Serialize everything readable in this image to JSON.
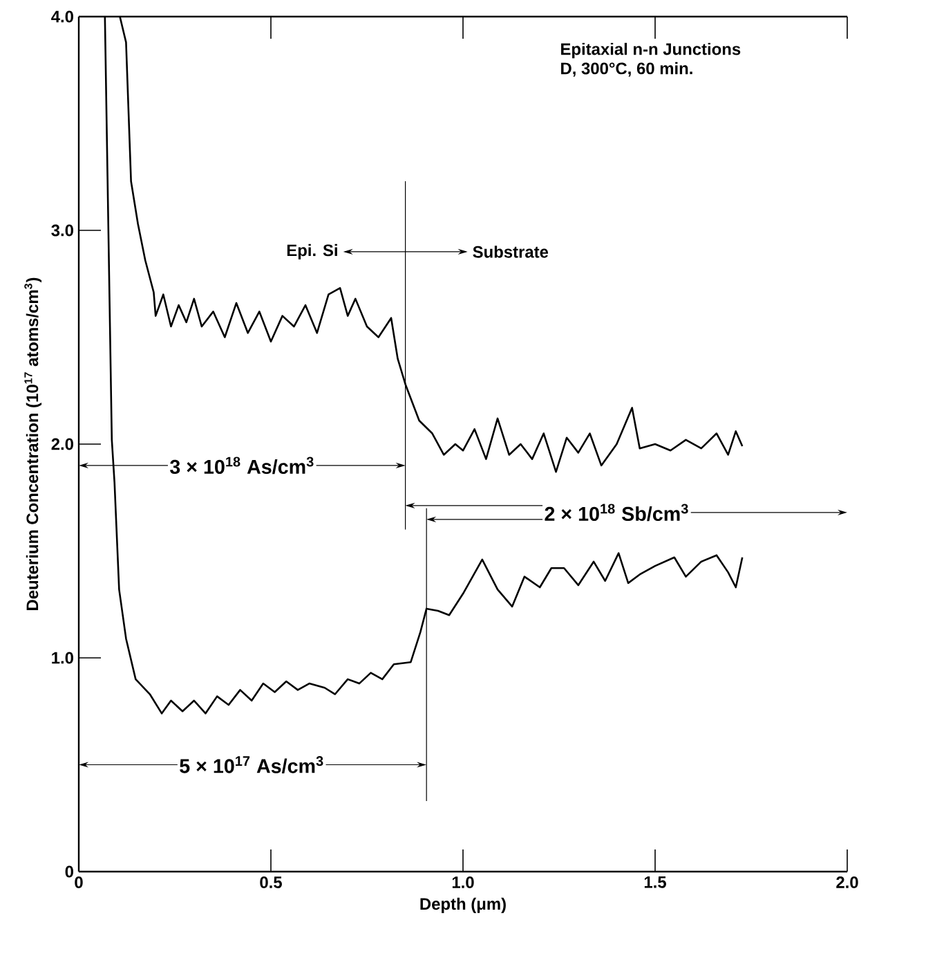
{
  "chart_data": {
    "type": "line",
    "xlabel": "Depth (μm)",
    "ylabel": "Deuterium Concentration (10$^{17}$ atoms/cm$^{3}$)",
    "xlim": [
      0,
      2.0
    ],
    "ylim": [
      0,
      4.0
    ],
    "xticks": [
      0,
      {
        "value": 0.5,
        "label": "0.5"
      },
      {
        "value": 1.0,
        "label": "1.0"
      },
      {
        "value": 1.5,
        "label": "1.5"
      },
      {
        "value": 2.0,
        "label": "2.0"
      }
    ],
    "yticks": [
      0,
      {
        "value": 1.0,
        "label": "1.0"
      },
      {
        "value": 2.0,
        "label": "2.0"
      },
      {
        "value": 3.0,
        "label": "3.0"
      },
      {
        "value": 4.0,
        "label": "4.0"
      }
    ],
    "grid": false,
    "marker": "none",
    "line_style": "solid",
    "series": [
      {
        "color": "#000000",
        "x": [
          0.107,
          0.123,
          0.136,
          0.154,
          0.173,
          0.195,
          0.2,
          0.22,
          0.24,
          0.26,
          0.28,
          0.3,
          0.32,
          0.35,
          0.38,
          0.41,
          0.44,
          0.47,
          0.5,
          0.53,
          0.56,
          0.59,
          0.62,
          0.65,
          0.68,
          0.7,
          0.72,
          0.75,
          0.78,
          0.813,
          0.83,
          0.85,
          0.886,
          0.92,
          0.95,
          0.98,
          1.0,
          1.03,
          1.06,
          1.09,
          1.12,
          1.15,
          1.18,
          1.21,
          1.242,
          1.27,
          1.3,
          1.33,
          1.36,
          1.4,
          1.44,
          1.46,
          1.5,
          1.54,
          1.58,
          1.62,
          1.66,
          1.69,
          1.71,
          1.727
        ],
        "values": [
          4.0,
          3.88,
          3.23,
          3.03,
          2.86,
          2.71,
          2.6,
          2.7,
          2.55,
          2.65,
          2.57,
          2.68,
          2.55,
          2.62,
          2.5,
          2.66,
          2.52,
          2.62,
          2.48,
          2.6,
          2.55,
          2.65,
          2.52,
          2.7,
          2.73,
          2.6,
          2.68,
          2.55,
          2.5,
          2.59,
          2.4,
          2.28,
          2.11,
          2.05,
          1.95,
          2.0,
          1.97,
          2.07,
          1.93,
          2.12,
          1.95,
          2.0,
          1.93,
          2.05,
          1.87,
          2.03,
          1.96,
          2.05,
          1.9,
          2.0,
          2.17,
          1.98,
          2.0,
          1.97,
          2.02,
          1.98,
          2.05,
          1.95,
          2.06,
          1.99
        ]
      },
      {
        "color": "#000000",
        "x": [
          0.068,
          0.086,
          0.093,
          0.105,
          0.123,
          0.148,
          0.185,
          0.216,
          0.24,
          0.27,
          0.3,
          0.33,
          0.36,
          0.39,
          0.42,
          0.45,
          0.48,
          0.51,
          0.54,
          0.57,
          0.6,
          0.64,
          0.667,
          0.7,
          0.73,
          0.76,
          0.79,
          0.82,
          0.864,
          0.889,
          0.905,
          0.935,
          0.964,
          1.0,
          1.05,
          1.09,
          1.128,
          1.16,
          1.2,
          1.23,
          1.263,
          1.3,
          1.34,
          1.37,
          1.405,
          1.43,
          1.46,
          1.5,
          1.55,
          1.58,
          1.62,
          1.66,
          1.69,
          1.71,
          1.727
        ],
        "values": [
          4.0,
          2.02,
          1.82,
          1.32,
          1.09,
          0.9,
          0.83,
          0.74,
          0.8,
          0.75,
          0.8,
          0.74,
          0.82,
          0.78,
          0.85,
          0.8,
          0.88,
          0.84,
          0.89,
          0.85,
          0.88,
          0.86,
          0.83,
          0.9,
          0.88,
          0.93,
          0.9,
          0.97,
          0.98,
          1.12,
          1.23,
          1.22,
          1.2,
          1.3,
          1.46,
          1.32,
          1.24,
          1.38,
          1.33,
          1.42,
          1.42,
          1.34,
          1.45,
          1.36,
          1.49,
          1.35,
          1.39,
          1.43,
          1.47,
          1.38,
          1.45,
          1.48,
          1.4,
          1.33,
          1.47
        ]
      }
    ],
    "ref_lines": [
      {
        "axis": "x",
        "value": 0.85
      },
      {
        "axis": "x",
        "value": 0.905
      }
    ],
    "annotations": [
      "Epitaxial n-n Junctions",
      "D, 300°C, 60 min.",
      "Epi. Si",
      "Substrate",
      "3 × 10$^{18}$ As/cm$^{3}$",
      "2 × 10$^{18}$ Sb/cm$^{3}$",
      "5 × 10$^{17}$ As/cm$^{3}$"
    ]
  }
}
